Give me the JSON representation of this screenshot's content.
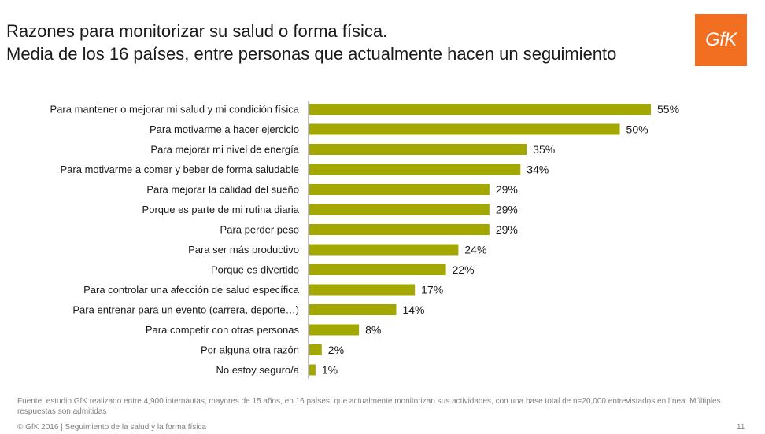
{
  "header": {
    "title_line1": "Razones para monitorizar su salud o forma física.",
    "title_line2": "Media de los 16 países, entre personas que actualmente hacen un seguimiento"
  },
  "logo": {
    "text": "GfK",
    "color": "#f26f21"
  },
  "chart_data": {
    "type": "bar",
    "orientation": "horizontal",
    "categories": [
      "Para mantener o mejorar mi salud y mi condición física",
      "Para motivarme a hacer ejercicio",
      "Para mejorar mi nivel de energía",
      "Para motivarme a comer y beber de forma saludable",
      "Para mejorar la calidad del sueño",
      "Porque es parte de mi rutina diaria",
      "Para perder peso",
      "Para ser más productivo",
      "Porque es divertido",
      "Para controlar una afección de salud específica",
      "Para entrenar para un evento (carrera, deporte…)",
      "Para competir con otras personas",
      "Por alguna otra razón",
      "No estoy seguro/a"
    ],
    "values": [
      55,
      50,
      35,
      34,
      29,
      29,
      29,
      24,
      22,
      17,
      14,
      8,
      2,
      1
    ],
    "value_labels": [
      "55%",
      "50%",
      "35%",
      "34%",
      "29%",
      "29%",
      "29%",
      "24%",
      "22%",
      "17%",
      "14%",
      "8%",
      "2%",
      "1%"
    ],
    "bar_color": "#a3a800",
    "xlim": [
      0,
      55
    ],
    "grid": false,
    "legend": "none"
  },
  "footer": {
    "note": "Fuente: estudio GfK realizado entre 4,900 internautas, mayores de 15 años, en 16 países, que actualmente monitorizan sus actividades, con una base total de n=20,000 entrevistados en línea. Múltiples respuestas son admitidas",
    "copyright": "© GfK 2016 | Seguimiento de la salud y  la forma física",
    "page_number": "11"
  }
}
